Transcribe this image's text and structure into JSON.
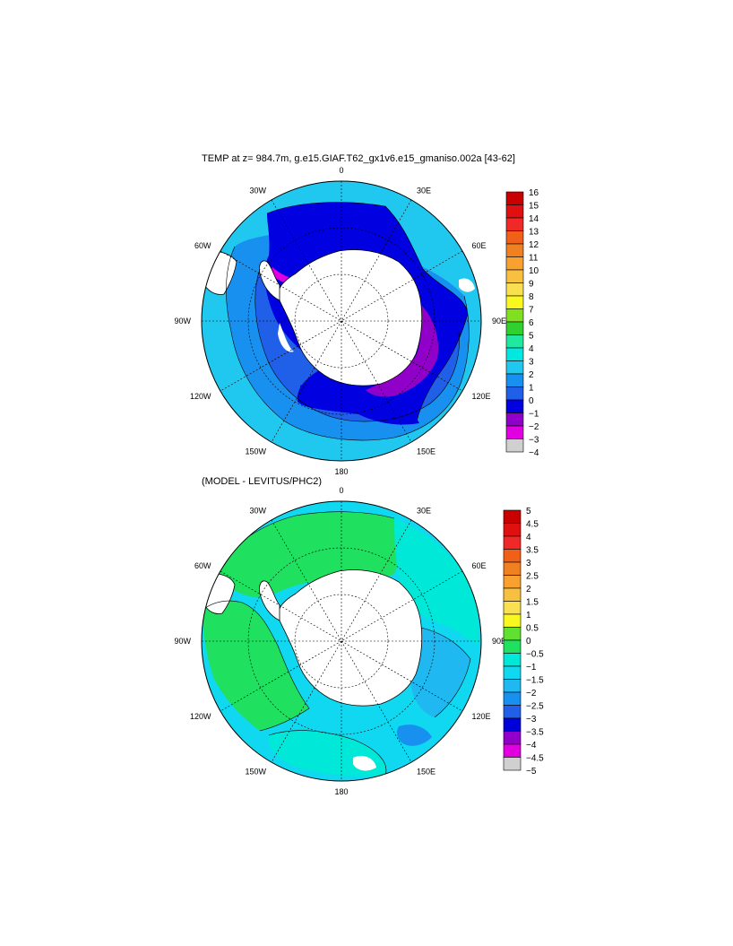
{
  "panels": [
    {
      "id": "temp",
      "title": "TEMP at z= 984.7m, g.e15.GIAF.T62_gx1v6.e15_gmaniso.002a [43-62]",
      "lon_labels": [
        "0",
        "30E",
        "60E",
        "90E",
        "120E",
        "150E",
        "180",
        "150W",
        "120W",
        "90W",
        "60W",
        "30W"
      ],
      "colorbar": {
        "labels": [
          "16",
          "15",
          "14",
          "13",
          "12",
          "11",
          "10",
          "9",
          "8",
          "7",
          "6",
          "5",
          "4",
          "3",
          "2",
          "1",
          "0",
          "−1",
          "−2",
          "−3",
          "−4"
        ],
        "colors": [
          "#c80000",
          "#e01010",
          "#f02828",
          "#f06018",
          "#f08020",
          "#f8a030",
          "#f8c040",
          "#f8e050",
          "#f8f820",
          "#80e020",
          "#30d030",
          "#20e8a0",
          "#00e8e0",
          "#20c8f0",
          "#1890f0",
          "#2060e8",
          "#0000e0",
          "#9000c8",
          "#e000e0",
          "#d0d0d0",
          "#707070"
        ]
      }
    },
    {
      "id": "diff",
      "title": "(MODEL - LEVITUS/PHC2)",
      "lon_labels": [
        "0",
        "30E",
        "60E",
        "90E",
        "120E",
        "150E",
        "180",
        "150W",
        "120W",
        "90W",
        "60W",
        "30W"
      ],
      "colorbar": {
        "labels": [
          "5",
          "4.5",
          "4",
          "3.5",
          "3",
          "2.5",
          "2",
          "1.5",
          "1",
          "0.5",
          "0",
          "−0.5",
          "−1",
          "−1.5",
          "−2",
          "−2.5",
          "−3",
          "−3.5",
          "−4",
          "−4.5",
          "−5"
        ],
        "colors": [
          "#c80000",
          "#e01010",
          "#f02828",
          "#f06018",
          "#f08020",
          "#f8a030",
          "#f8c040",
          "#f8e050",
          "#f8f820",
          "#60e030",
          "#20e060",
          "#00e8d8",
          "#10d8f0",
          "#20b8f0",
          "#1890f0",
          "#2060e8",
          "#0000d8",
          "#9000c8",
          "#e000e0",
          "#d0d0d0",
          "#707070"
        ]
      }
    }
  ]
}
